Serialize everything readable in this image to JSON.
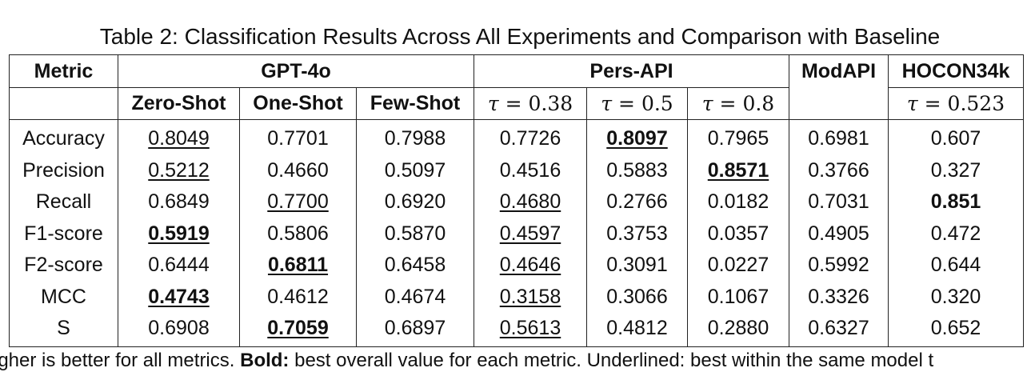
{
  "caption": "Table 2: Classification Results Across All Experiments and Comparison with Baseline",
  "header": {
    "metric": "Metric",
    "groups": [
      "GPT-4o",
      "Pers-API",
      "ModAPI",
      "HOCON34k"
    ],
    "gpt_sub": [
      "Zero-Shot",
      "One-Shot",
      "Few-Shot"
    ],
    "tau_symbol": "τ",
    "eq": " = ",
    "pers_tau": [
      "0.38",
      "0.5",
      "0.8"
    ],
    "hocon_tau": "0.523"
  },
  "rows": [
    {
      "metric": "Accuracy",
      "values": [
        "0.8049",
        "0.7701",
        "0.7988",
        "0.7726",
        "0.8097",
        "0.7965",
        "0.6981",
        "0.607"
      ]
    },
    {
      "metric": "Precision",
      "values": [
        "0.5212",
        "0.4660",
        "0.5097",
        "0.4516",
        "0.5883",
        "0.8571",
        "0.3766",
        "0.327"
      ]
    },
    {
      "metric": "Recall",
      "values": [
        "0.6849",
        "0.7700",
        "0.6920",
        "0.4680",
        "0.2766",
        "0.0182",
        "0.7031",
        "0.851"
      ]
    },
    {
      "metric": "F1-score",
      "values": [
        "0.5919",
        "0.5806",
        "0.5870",
        "0.4597",
        "0.3753",
        "0.0357",
        "0.4905",
        "0.472"
      ]
    },
    {
      "metric": "F2-score",
      "values": [
        "0.6444",
        "0.6811",
        "0.6458",
        "0.4646",
        "0.3091",
        "0.0227",
        "0.5992",
        "0.644"
      ]
    },
    {
      "metric": "MCC",
      "values": [
        "0.4743",
        "0.4612",
        "0.4674",
        "0.3158",
        "0.3066",
        "0.1067",
        "0.3326",
        "0.320"
      ]
    },
    {
      "metric": "S",
      "values": [
        "0.6908",
        "0.7059",
        "0.6897",
        "0.5613",
        "0.4812",
        "0.2880",
        "0.6327",
        "0.652"
      ]
    }
  ],
  "footnote": {
    "part1": "igher is better for all metrics. ",
    "bold_label": "Bold:",
    "part2": " best overall value for each metric. Underlined: best within the same model t"
  }
}
